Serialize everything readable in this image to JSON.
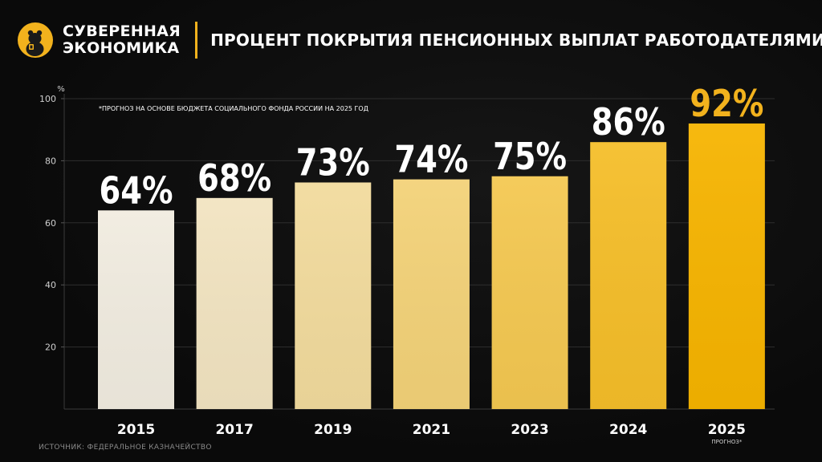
{
  "header": {
    "brand_line1": "СУВЕРЕННАЯ",
    "brand_line2": "ЭКОНОМИКА",
    "logo_icon": "bear-icon",
    "title": "ПРОЦЕНТ ПОКРЫТИЯ ПЕНСИОННЫХ ВЫПЛАТ РАБОТОДАТЕЛЯМИ"
  },
  "footer": {
    "source": "ИСТОЧНИК: ФЕДЕРАЛЬНОЕ КАЗНАЧЕЙСТВО"
  },
  "colors": {
    "accent": "#f2b21d",
    "background": "#0c0c0c",
    "bar_light": "#f1ece0",
    "bar_dark": "#f6b400"
  },
  "chart_data": {
    "type": "bar",
    "categories": [
      "2015",
      "2017",
      "2019",
      "2021",
      "2023",
      "2024",
      "2025"
    ],
    "category_sublabels": [
      "",
      "",
      "",
      "",
      "",
      "",
      "ПРОГНОЗ*"
    ],
    "values": [
      64,
      68,
      73,
      74,
      75,
      86,
      92
    ],
    "value_labels": [
      "64%",
      "68%",
      "73%",
      "74%",
      "75%",
      "86%",
      "92%"
    ],
    "ylabel": "%",
    "yticks": [
      20,
      40,
      60,
      80,
      100
    ],
    "ylim": [
      0,
      100
    ],
    "grid": true,
    "annotation": "*ПРОГНОЗ НА ОСНОВЕ БЮДЖЕТА СОЦИАЛЬНОГО ФОНДА РОССИИ НА 2025 ГОД"
  }
}
